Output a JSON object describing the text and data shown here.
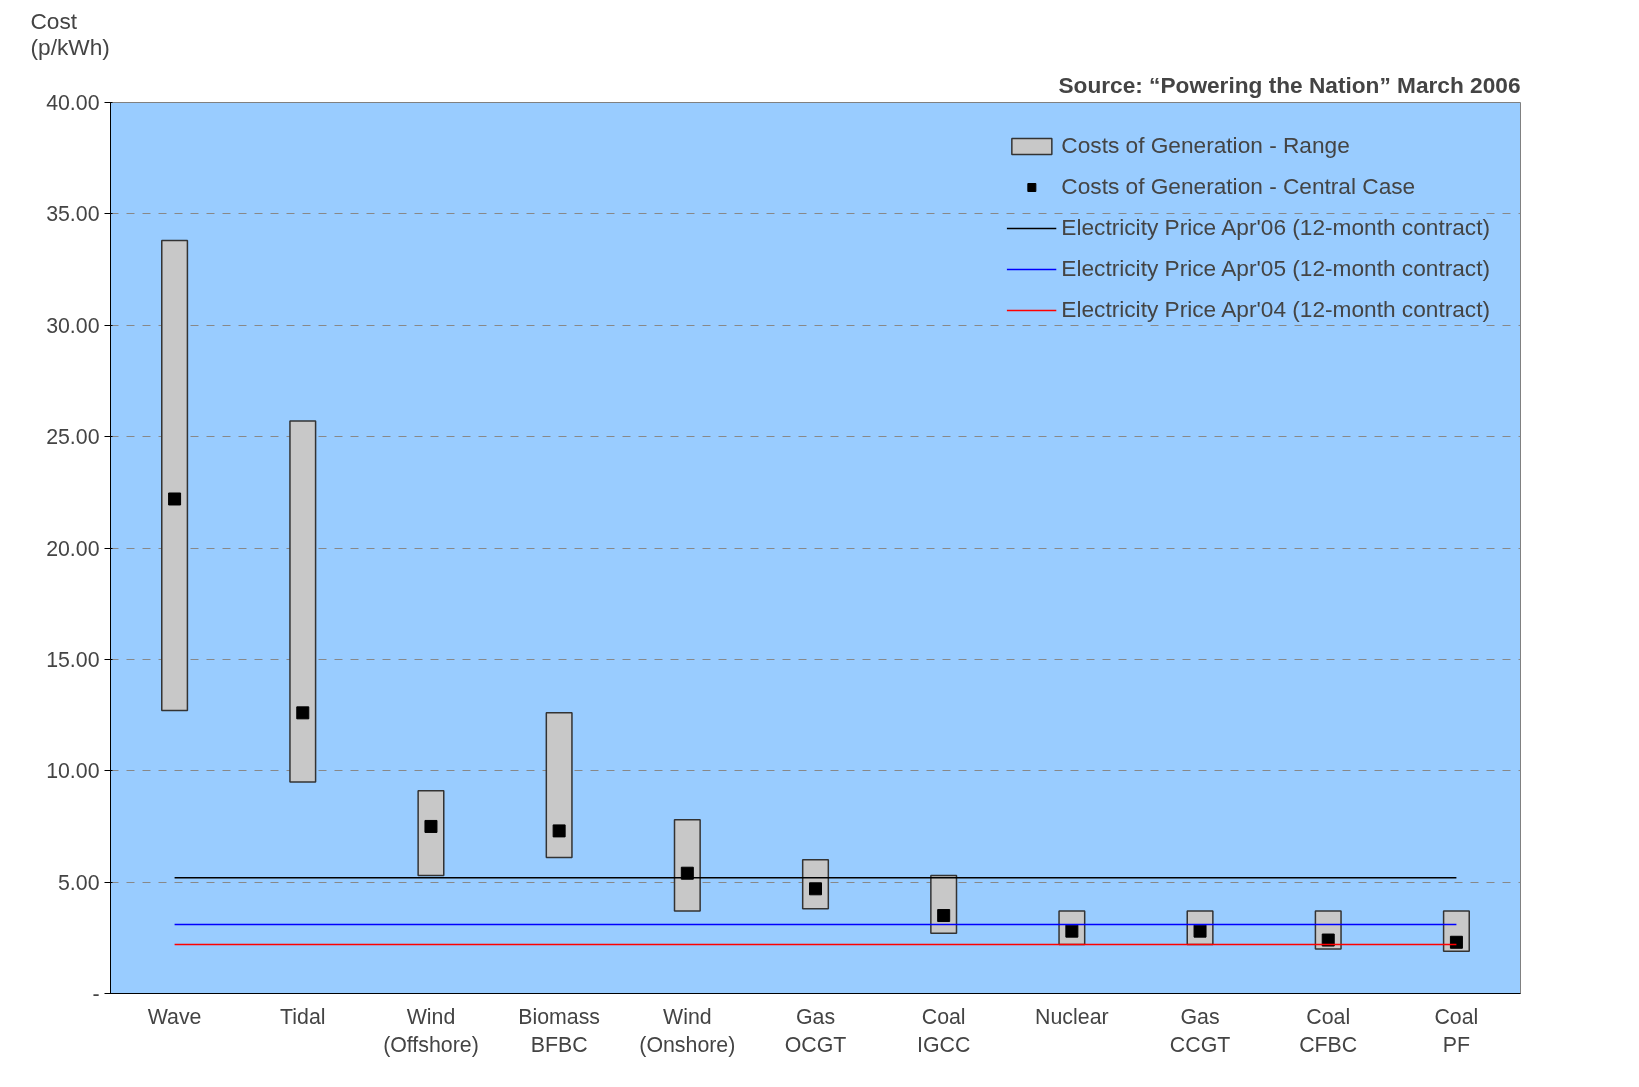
{
  "chart_data": {
    "type": "bar",
    "ylabel": "Cost\n(p/kWh)",
    "annotations": [
      "Source: “Powering the Nation” March 2006"
    ],
    "categories": [
      "Wave",
      "Tidal",
      "Wind\n(Offshore)",
      "Biomass\nBFBC",
      "Wind\n(Onshore)",
      "Gas\nOCGT",
      "Coal\nIGCC",
      "Nuclear",
      "Gas\nCCGT",
      "Coal\nCFBC",
      "Coal\nPF"
    ],
    "series": [
      {
        "name": "Costs of Generation - Range",
        "color": "#c8c8c8",
        "base": [
          12.7,
          9.5,
          5.3,
          6.1,
          3.7,
          3.8,
          2.7,
          2.2,
          2.2,
          2.0,
          1.9
        ],
        "values": [
          21.1,
          16.2,
          3.8,
          6.5,
          4.1,
          2.2,
          2.6,
          1.5,
          1.5,
          1.7,
          1.8
        ]
      },
      {
        "name": "Costs of Generation - Central Case",
        "type": "scatter",
        "marker": "square",
        "color": "#000000",
        "values": [
          22.2,
          12.6,
          7.5,
          7.3,
          5.4,
          4.7,
          3.5,
          2.8,
          2.8,
          2.4,
          2.3
        ]
      },
      {
        "name": "Electricity Price Apr'06 (12-month contract)",
        "type": "line",
        "color": "#000000",
        "values": [
          5.2,
          5.2,
          5.2,
          5.2,
          5.2,
          5.2,
          5.2,
          5.2,
          5.2,
          5.2,
          5.2
        ]
      },
      {
        "name": "Electricity Price Apr'05 (12-month contract)",
        "type": "line",
        "color": "#0000ff",
        "values": [
          3.1,
          3.1,
          3.1,
          3.1,
          3.1,
          3.1,
          3.1,
          3.1,
          3.1,
          3.1,
          3.1
        ]
      },
      {
        "name": "Electricity Price Apr'04 (12-month contract)",
        "type": "line",
        "color": "#ff0000",
        "values": [
          2.2,
          2.2,
          2.2,
          2.2,
          2.2,
          2.2,
          2.2,
          2.2,
          2.2,
          2.2,
          2.2
        ]
      }
    ],
    "ylim": [
      0,
      40
    ],
    "yticks": [
      {
        "value": 0,
        "label": "-"
      },
      {
        "value": 5,
        "label": "5.00"
      },
      {
        "value": 10,
        "label": "10.00"
      },
      {
        "value": 15,
        "label": "15.00"
      },
      {
        "value": 20,
        "label": "20.00"
      },
      {
        "value": 25,
        "label": "25.00"
      },
      {
        "value": 30,
        "label": "30.00"
      },
      {
        "value": 35,
        "label": "35.00"
      },
      {
        "value": 40,
        "label": "40.00"
      }
    ],
    "grid": "y",
    "legend": "top right"
  }
}
